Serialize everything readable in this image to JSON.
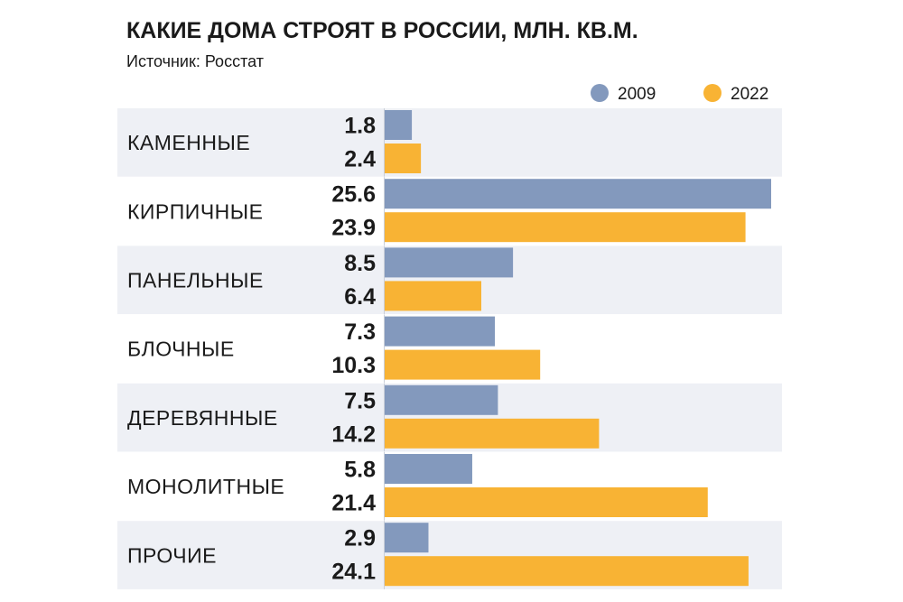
{
  "title": "КАКИЕ ДОМА СТРОЯТ В РОССИИ, МЛН. КВ.М.",
  "subtitle": "Источник: Росстат",
  "chart_data": {
    "type": "bar",
    "orientation": "horizontal",
    "categories": [
      "КАМЕННЫЕ",
      "КИРПИЧНЫЕ",
      "ПАНЕЛЬНЫЕ",
      "БЛОЧНЫЕ",
      "ДЕРЕВЯННЫЕ",
      "МОНОЛИТНЫЕ",
      "ПРОЧИЕ"
    ],
    "series": [
      {
        "name": "2009",
        "color": "#8399bd",
        "values": [
          1.8,
          25.6,
          8.5,
          7.3,
          7.5,
          5.8,
          2.9
        ]
      },
      {
        "name": "2022",
        "color": "#f8b334",
        "values": [
          2.4,
          23.9,
          6.4,
          10.3,
          14.2,
          21.4,
          24.1
        ]
      }
    ],
    "legend_position": "top-right",
    "band_color": "#eef0f5",
    "xlim": [
      0,
      25.6
    ]
  }
}
